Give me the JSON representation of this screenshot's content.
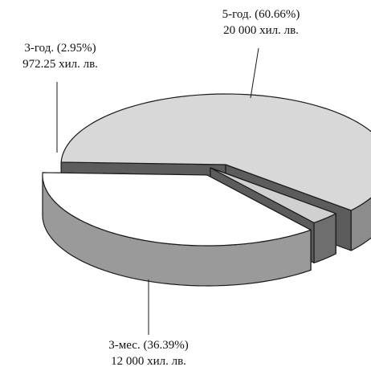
{
  "chart_data": {
    "type": "pie",
    "title": "",
    "style": "3d-exploded",
    "categories": [
      "5-год.",
      "3-год.",
      "3-мес."
    ],
    "values": [
      20000,
      972.25,
      12000
    ],
    "percentages": [
      60.66,
      2.95,
      36.39
    ],
    "unit": "хил. лв.",
    "labels": [
      {
        "line1": "5-год. (60.66%)",
        "line2": "20 000 хил. лв."
      },
      {
        "line1": "3-год. (2.95%)",
        "line2": "972.25 хил. лв."
      },
      {
        "line1": "3-мес. (36.39%)",
        "line2": "12 000 хил. лв."
      }
    ],
    "colors": {
      "top_5god": "#d8d8d8",
      "top_3god": "#d0d0d0",
      "top_3mes": "#ffffff",
      "side_5god": "#8c8c8c",
      "side_3god": "#6e6e6e",
      "side_3mes": "#9a9a9a",
      "cut_face": "#5c5c5c",
      "outline": "#1a1a1a"
    }
  }
}
